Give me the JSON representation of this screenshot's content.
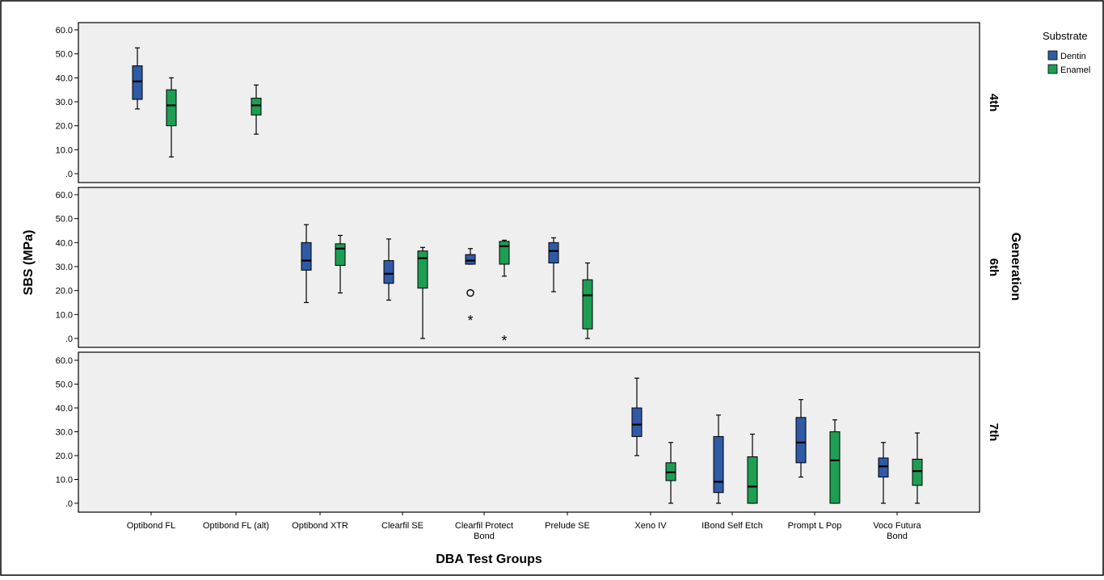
{
  "chart_data": {
    "type": "boxplot",
    "xlabel": "DBA Test Groups",
    "ylabel": "SBS (MPa)",
    "facet_label": "Generation",
    "legend_title": "Substrate",
    "legend_position": "top-right",
    "grid": false,
    "ylim": [
      0,
      60
    ],
    "yticks": [
      ".0",
      "10.0",
      "20.0",
      "30.0",
      "40.0",
      "50.0",
      "60.0"
    ],
    "categories": [
      [
        "Optibond FL"
      ],
      [
        "Optibond FL (alt)"
      ],
      [
        "Optibond XTR"
      ],
      [
        "Clearfil SE"
      ],
      [
        "Clearfil Protect",
        "Bond"
      ],
      [
        "Prelude SE"
      ],
      [
        "Xeno IV"
      ],
      [
        "IBond Self Etch"
      ],
      [
        "Prompt L Pop"
      ],
      [
        "Voco Futura",
        "Bond"
      ]
    ],
    "series": [
      {
        "name": "Dentin",
        "color": "#2f5aa6"
      },
      {
        "name": "Enamel",
        "color": "#1e9e52"
      }
    ],
    "panels": [
      {
        "label": "4th",
        "boxes": [
          {
            "category": 0,
            "series": 0,
            "min": 27,
            "q1": 31,
            "median": 38.5,
            "q3": 45,
            "max": 52.5
          },
          {
            "category": 0,
            "series": 1,
            "min": 7,
            "q1": 20,
            "median": 28.5,
            "q3": 35,
            "max": 40
          },
          {
            "category": 1,
            "series": 1,
            "min": 16.5,
            "q1": 24.5,
            "median": 28.5,
            "q3": 31.5,
            "max": 37
          }
        ],
        "outliers": []
      },
      {
        "label": "6th",
        "boxes": [
          {
            "category": 2,
            "series": 0,
            "min": 15,
            "q1": 28.5,
            "median": 32.5,
            "q3": 40,
            "max": 47.5
          },
          {
            "category": 2,
            "series": 1,
            "min": 19,
            "q1": 30.5,
            "median": 37.5,
            "q3": 39.5,
            "max": 43
          },
          {
            "category": 3,
            "series": 0,
            "min": 16,
            "q1": 23,
            "median": 27,
            "q3": 32.5,
            "max": 41.5
          },
          {
            "category": 3,
            "series": 1,
            "min": 0,
            "q1": 21,
            "median": 33.5,
            "q3": 36.5,
            "max": 38
          },
          {
            "category": 4,
            "series": 0,
            "min": 31,
            "q1": 31,
            "median": 32.5,
            "q3": 35,
            "max": 37.5
          },
          {
            "category": 4,
            "series": 1,
            "min": 26,
            "q1": 31,
            "median": 38.5,
            "q3": 40.5,
            "max": 41
          },
          {
            "category": 5,
            "series": 0,
            "min": 19.5,
            "q1": 31.5,
            "median": 36.5,
            "q3": 40,
            "max": 42
          },
          {
            "category": 5,
            "series": 1,
            "min": 0,
            "q1": 4,
            "median": 18,
            "q3": 24.5,
            "max": 31.5
          }
        ],
        "outliers": [
          {
            "category": 4,
            "series": 0,
            "value": 19,
            "marker": "o"
          },
          {
            "category": 4,
            "series": 0,
            "value": 8.5,
            "marker": "*"
          },
          {
            "category": 4,
            "series": 1,
            "value": 0,
            "marker": "*"
          }
        ]
      },
      {
        "label": "7th",
        "boxes": [
          {
            "category": 6,
            "series": 0,
            "min": 20,
            "q1": 28,
            "median": 33,
            "q3": 40,
            "max": 52.5
          },
          {
            "category": 6,
            "series": 1,
            "min": 0,
            "q1": 9.5,
            "median": 13,
            "q3": 17,
            "max": 25.5
          },
          {
            "category": 7,
            "series": 0,
            "min": 0,
            "q1": 4.5,
            "median": 9,
            "q3": 28,
            "max": 37
          },
          {
            "category": 7,
            "series": 1,
            "min": 0,
            "q1": 0,
            "median": 7,
            "q3": 19.5,
            "max": 29
          },
          {
            "category": 8,
            "series": 0,
            "min": 11,
            "q1": 17,
            "median": 25.5,
            "q3": 36,
            "max": 43.5
          },
          {
            "category": 8,
            "series": 1,
            "min": 0,
            "q1": 0,
            "median": 18,
            "q3": 30,
            "max": 35
          },
          {
            "category": 9,
            "series": 0,
            "min": 0,
            "q1": 11,
            "median": 15.5,
            "q3": 19,
            "max": 25.5
          },
          {
            "category": 9,
            "series": 1,
            "min": 0,
            "q1": 7.5,
            "median": 13.5,
            "q3": 18.5,
            "max": 29.5
          }
        ],
        "outliers": []
      }
    ]
  }
}
